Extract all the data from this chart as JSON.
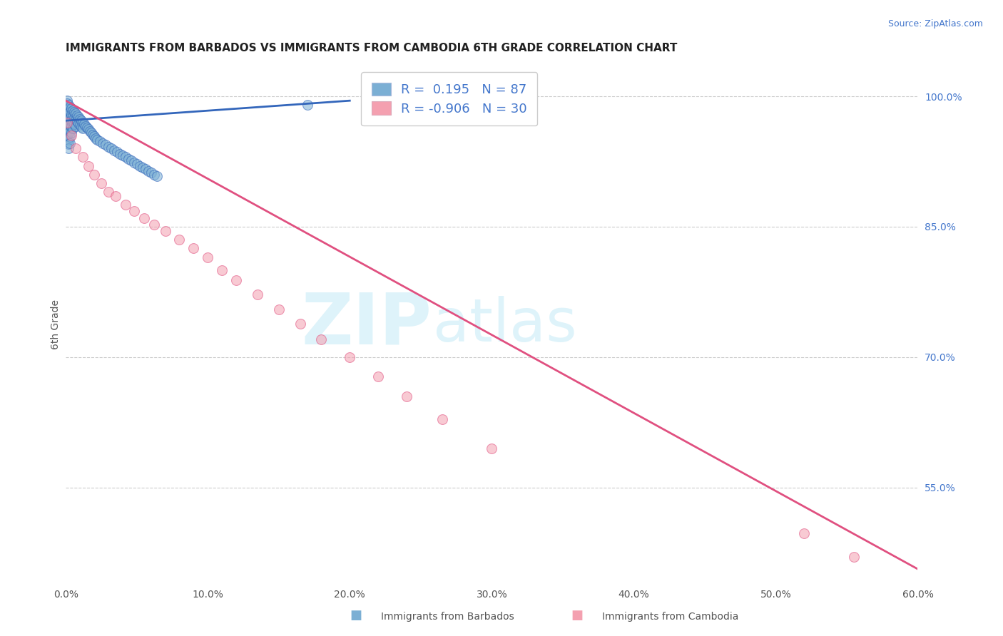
{
  "title": "IMMIGRANTS FROM BARBADOS VS IMMIGRANTS FROM CAMBODIA 6TH GRADE CORRELATION CHART",
  "source": "Source: ZipAtlas.com",
  "ylabel": "6th Grade",
  "watermark_zip": "ZIP",
  "watermark_atlas": "atlas",
  "blue_R": 0.195,
  "blue_N": 87,
  "pink_R": -0.906,
  "pink_N": 30,
  "blue_color": "#7BAFD4",
  "pink_color": "#F4A0B0",
  "blue_line_color": "#3366BB",
  "pink_line_color": "#E05080",
  "legend_label_blue": "Immigrants from Barbados",
  "legend_label_pink": "Immigrants from Cambodia",
  "xlim": [
    0.0,
    0.6
  ],
  "ylim": [
    0.44,
    1.035
  ],
  "right_yticks": [
    1.0,
    0.85,
    0.7,
    0.55
  ],
  "right_yticklabels": [
    "100.0%",
    "85.0%",
    "70.0%",
    "55.0%"
  ],
  "xticklabels": [
    "0.0%",
    "",
    "10.0%",
    "",
    "20.0%",
    "",
    "30.0%",
    "",
    "40.0%",
    "",
    "50.0%",
    "",
    "60.0%"
  ],
  "xticks": [
    0.0,
    0.05,
    0.1,
    0.15,
    0.2,
    0.25,
    0.3,
    0.35,
    0.4,
    0.45,
    0.5,
    0.55,
    0.6
  ],
  "blue_x": [
    0.0,
    0.0,
    0.001,
    0.001,
    0.001,
    0.001,
    0.001,
    0.001,
    0.001,
    0.001,
    0.001,
    0.001,
    0.001,
    0.001,
    0.002,
    0.002,
    0.002,
    0.002,
    0.002,
    0.002,
    0.002,
    0.002,
    0.002,
    0.003,
    0.003,
    0.003,
    0.003,
    0.003,
    0.003,
    0.003,
    0.004,
    0.004,
    0.004,
    0.004,
    0.004,
    0.005,
    0.005,
    0.005,
    0.005,
    0.006,
    0.006,
    0.006,
    0.007,
    0.007,
    0.007,
    0.008,
    0.008,
    0.009,
    0.009,
    0.01,
    0.01,
    0.011,
    0.011,
    0.012,
    0.012,
    0.013,
    0.014,
    0.015,
    0.016,
    0.017,
    0.018,
    0.019,
    0.02,
    0.021,
    0.022,
    0.024,
    0.026,
    0.028,
    0.03,
    0.032,
    0.034,
    0.036,
    0.038,
    0.04,
    0.042,
    0.044,
    0.046,
    0.048,
    0.05,
    0.052,
    0.054,
    0.056,
    0.058,
    0.06,
    0.062,
    0.064,
    0.17
  ],
  "blue_y": [
    0.99,
    0.985,
    0.995,
    0.988,
    0.98,
    0.975,
    0.97,
    0.965,
    0.96,
    0.955,
    0.992,
    0.982,
    0.972,
    0.962,
    0.99,
    0.985,
    0.978,
    0.97,
    0.963,
    0.957,
    0.95,
    0.945,
    0.94,
    0.988,
    0.982,
    0.975,
    0.968,
    0.96,
    0.953,
    0.946,
    0.986,
    0.979,
    0.972,
    0.965,
    0.958,
    0.984,
    0.977,
    0.97,
    0.963,
    0.982,
    0.975,
    0.968,
    0.98,
    0.973,
    0.966,
    0.978,
    0.971,
    0.976,
    0.969,
    0.974,
    0.967,
    0.972,
    0.965,
    0.97,
    0.963,
    0.968,
    0.966,
    0.964,
    0.962,
    0.96,
    0.958,
    0.956,
    0.954,
    0.952,
    0.95,
    0.948,
    0.946,
    0.944,
    0.942,
    0.94,
    0.938,
    0.936,
    0.934,
    0.932,
    0.93,
    0.928,
    0.926,
    0.924,
    0.922,
    0.92,
    0.918,
    0.916,
    0.914,
    0.912,
    0.91,
    0.908,
    0.99
  ],
  "pink_x": [
    0.001,
    0.004,
    0.007,
    0.012,
    0.016,
    0.02,
    0.025,
    0.03,
    0.035,
    0.042,
    0.048,
    0.055,
    0.062,
    0.07,
    0.08,
    0.09,
    0.1,
    0.11,
    0.12,
    0.135,
    0.15,
    0.165,
    0.18,
    0.2,
    0.22,
    0.24,
    0.265,
    0.3,
    0.52,
    0.555
  ],
  "pink_y": [
    0.97,
    0.955,
    0.94,
    0.93,
    0.92,
    0.91,
    0.9,
    0.89,
    0.885,
    0.875,
    0.868,
    0.86,
    0.852,
    0.845,
    0.835,
    0.825,
    0.815,
    0.8,
    0.788,
    0.772,
    0.755,
    0.738,
    0.72,
    0.7,
    0.678,
    0.655,
    0.628,
    0.595,
    0.497,
    0.47
  ],
  "pink_trend_x": [
    0.0,
    0.6
  ],
  "pink_trend_y": [
    0.995,
    0.456
  ],
  "blue_trend_x": [
    0.0,
    0.2
  ],
  "blue_trend_y": [
    0.972,
    0.995
  ],
  "grid_color": "#CCCCCC",
  "background_color": "#FFFFFF",
  "title_fontsize": 11,
  "source_fontsize": 9
}
